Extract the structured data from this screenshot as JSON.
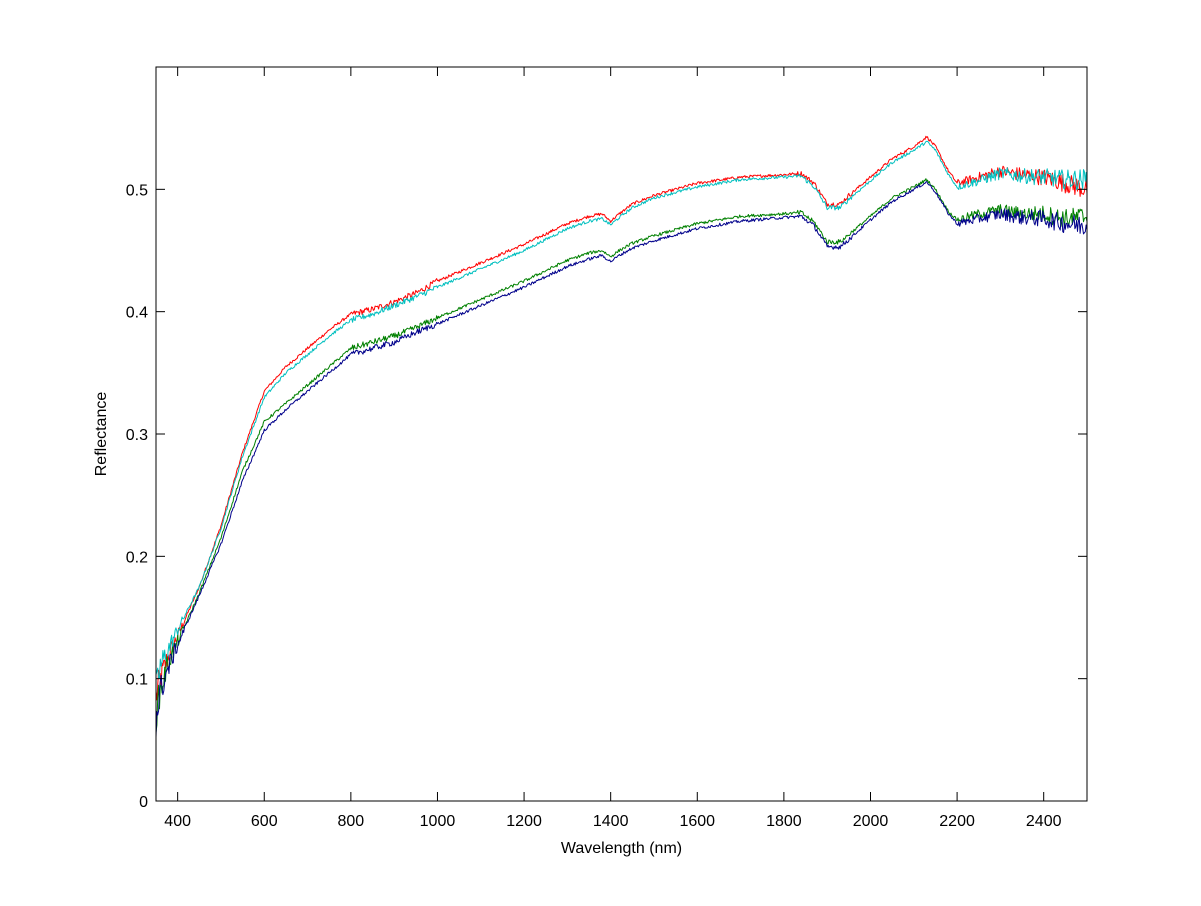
{
  "chart_data": {
    "type": "line",
    "xlabel": "Wavelength (nm)",
    "ylabel": "Reflectance",
    "xlim": [
      350,
      2500
    ],
    "ylim": [
      0,
      0.6
    ],
    "xticks": [
      400,
      600,
      800,
      1000,
      1200,
      1400,
      1600,
      1800,
      2000,
      2200,
      2400
    ],
    "yticks": [
      0,
      0.1,
      0.2,
      0.3,
      0.4,
      0.5
    ],
    "ytick_labels": [
      "0",
      "0.1",
      "0.2",
      "0.3",
      "0.4",
      "0.5"
    ],
    "grid": false,
    "series": [
      {
        "color": "#ff0000",
        "x": [
          350,
          360,
          380,
          400,
          450,
          500,
          550,
          600,
          650,
          700,
          750,
          800,
          850,
          900,
          950,
          1000,
          1100,
          1200,
          1300,
          1350,
          1380,
          1400,
          1420,
          1450,
          1500,
          1600,
          1700,
          1800,
          1840,
          1870,
          1900,
          1930,
          1950,
          2000,
          2050,
          2100,
          2130,
          2150,
          2180,
          2200,
          2250,
          2300,
          2350,
          2400,
          2450,
          2500
        ],
        "y": [
          0.085,
          0.1,
          0.12,
          0.135,
          0.175,
          0.225,
          0.285,
          0.335,
          0.355,
          0.37,
          0.385,
          0.398,
          0.402,
          0.408,
          0.415,
          0.425,
          0.44,
          0.455,
          0.472,
          0.478,
          0.48,
          0.474,
          0.48,
          0.488,
          0.495,
          0.505,
          0.51,
          0.512,
          0.513,
          0.505,
          0.488,
          0.488,
          0.495,
          0.51,
          0.525,
          0.535,
          0.543,
          0.535,
          0.515,
          0.505,
          0.51,
          0.515,
          0.512,
          0.51,
          0.505,
          0.5
        ]
      },
      {
        "color": "#00bfbf",
        "x": [
          350,
          360,
          380,
          400,
          450,
          500,
          550,
          600,
          650,
          700,
          750,
          800,
          850,
          900,
          950,
          1000,
          1100,
          1200,
          1300,
          1350,
          1380,
          1400,
          1420,
          1450,
          1500,
          1600,
          1700,
          1800,
          1840,
          1870,
          1900,
          1930,
          1950,
          2000,
          2050,
          2100,
          2130,
          2150,
          2180,
          2200,
          2250,
          2300,
          2350,
          2400,
          2450,
          2500
        ],
        "y": [
          0.09,
          0.11,
          0.125,
          0.14,
          0.175,
          0.223,
          0.282,
          0.33,
          0.35,
          0.365,
          0.38,
          0.393,
          0.398,
          0.405,
          0.412,
          0.42,
          0.435,
          0.45,
          0.468,
          0.474,
          0.476,
          0.471,
          0.477,
          0.485,
          0.493,
          0.502,
          0.508,
          0.51,
          0.511,
          0.502,
          0.485,
          0.485,
          0.492,
          0.507,
          0.522,
          0.532,
          0.539,
          0.532,
          0.512,
          0.502,
          0.507,
          0.513,
          0.511,
          0.51,
          0.508,
          0.508
        ]
      },
      {
        "color": "#008000",
        "x": [
          350,
          360,
          380,
          400,
          450,
          500,
          550,
          600,
          650,
          700,
          750,
          800,
          850,
          900,
          950,
          1000,
          1100,
          1200,
          1300,
          1350,
          1380,
          1400,
          1420,
          1450,
          1500,
          1600,
          1700,
          1800,
          1840,
          1870,
          1900,
          1930,
          1950,
          2000,
          2050,
          2100,
          2130,
          2150,
          2180,
          2200,
          2250,
          2300,
          2350,
          2400,
          2450,
          2500
        ],
        "y": [
          0.07,
          0.09,
          0.115,
          0.13,
          0.17,
          0.215,
          0.27,
          0.31,
          0.325,
          0.34,
          0.355,
          0.37,
          0.375,
          0.38,
          0.387,
          0.395,
          0.41,
          0.425,
          0.442,
          0.448,
          0.45,
          0.445,
          0.45,
          0.456,
          0.462,
          0.472,
          0.478,
          0.48,
          0.481,
          0.473,
          0.457,
          0.457,
          0.463,
          0.478,
          0.493,
          0.502,
          0.508,
          0.5,
          0.482,
          0.475,
          0.48,
          0.483,
          0.48,
          0.48,
          0.476,
          0.478
        ]
      },
      {
        "color": "#00008b",
        "x": [
          350,
          360,
          380,
          400,
          450,
          500,
          550,
          600,
          650,
          700,
          750,
          800,
          850,
          900,
          950,
          1000,
          1100,
          1200,
          1300,
          1350,
          1380,
          1400,
          1420,
          1450,
          1500,
          1600,
          1700,
          1800,
          1840,
          1870,
          1900,
          1930,
          1950,
          2000,
          2050,
          2100,
          2130,
          2150,
          2180,
          2200,
          2250,
          2300,
          2350,
          2400,
          2450,
          2500
        ],
        "y": [
          0.065,
          0.09,
          0.11,
          0.128,
          0.168,
          0.21,
          0.262,
          0.303,
          0.32,
          0.335,
          0.35,
          0.365,
          0.37,
          0.375,
          0.383,
          0.39,
          0.405,
          0.42,
          0.437,
          0.443,
          0.446,
          0.441,
          0.446,
          0.452,
          0.458,
          0.468,
          0.474,
          0.477,
          0.478,
          0.47,
          0.453,
          0.453,
          0.459,
          0.475,
          0.49,
          0.5,
          0.506,
          0.498,
          0.48,
          0.472,
          0.476,
          0.48,
          0.477,
          0.476,
          0.472,
          0.47
        ]
      }
    ]
  }
}
